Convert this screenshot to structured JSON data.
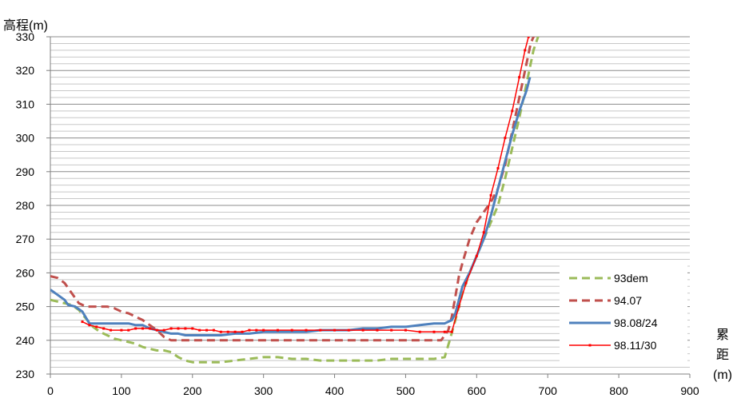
{
  "chart_data": {
    "type": "line",
    "title": "",
    "ylabel": "高程(m)",
    "xlabel_lines": [
      "累",
      "距",
      "(m)"
    ],
    "xlim": [
      0,
      900
    ],
    "ylim": [
      230,
      330
    ],
    "x_ticks": [
      0,
      100,
      200,
      300,
      400,
      500,
      600,
      700,
      800,
      900
    ],
    "y_ticks": [
      230,
      240,
      250,
      260,
      270,
      280,
      290,
      300,
      310,
      320,
      330
    ],
    "y_minor_step": 2,
    "grid": true,
    "legend_position": "bottom-right",
    "series": [
      {
        "name": "93dem",
        "color": "#9bbb59",
        "style": "dashed",
        "points": [
          [
            0,
            252
          ],
          [
            10,
            251.5
          ],
          [
            20,
            251
          ],
          [
            30,
            250.5
          ],
          [
            40,
            249
          ],
          [
            50,
            246.5
          ],
          [
            60,
            244
          ],
          [
            70,
            242.5
          ],
          [
            80,
            241.5
          ],
          [
            90,
            240.5
          ],
          [
            100,
            240
          ],
          [
            110,
            239.5
          ],
          [
            120,
            239
          ],
          [
            130,
            238
          ],
          [
            140,
            237.5
          ],
          [
            150,
            237
          ],
          [
            160,
            237
          ],
          [
            170,
            236.5
          ],
          [
            180,
            235
          ],
          [
            190,
            234
          ],
          [
            200,
            233.5
          ],
          [
            220,
            233.5
          ],
          [
            240,
            233.5
          ],
          [
            260,
            234
          ],
          [
            280,
            234.5
          ],
          [
            300,
            235
          ],
          [
            320,
            235
          ],
          [
            340,
            234.5
          ],
          [
            360,
            234.5
          ],
          [
            380,
            234
          ],
          [
            400,
            234
          ],
          [
            420,
            234
          ],
          [
            440,
            234
          ],
          [
            460,
            234
          ],
          [
            480,
            234.5
          ],
          [
            500,
            234.5
          ],
          [
            520,
            234.5
          ],
          [
            540,
            234.5
          ],
          [
            555,
            235
          ],
          [
            562,
            240
          ],
          [
            570,
            246
          ],
          [
            580,
            254
          ],
          [
            590,
            260
          ],
          [
            600,
            265
          ],
          [
            610,
            270
          ],
          [
            620,
            275
          ],
          [
            630,
            280
          ],
          [
            640,
            288
          ],
          [
            650,
            297
          ],
          [
            660,
            306
          ],
          [
            670,
            316
          ],
          [
            680,
            326
          ],
          [
            688,
            331
          ]
        ]
      },
      {
        "name": "94.07",
        "color": "#c0504d",
        "style": "dashed",
        "points": [
          [
            0,
            259
          ],
          [
            10,
            258.5
          ],
          [
            20,
            257
          ],
          [
            30,
            254
          ],
          [
            40,
            251
          ],
          [
            50,
            250
          ],
          [
            60,
            250
          ],
          [
            70,
            250
          ],
          [
            80,
            250
          ],
          [
            90,
            249.5
          ],
          [
            100,
            248.5
          ],
          [
            110,
            248
          ],
          [
            120,
            247
          ],
          [
            130,
            246
          ],
          [
            140,
            244.5
          ],
          [
            150,
            243
          ],
          [
            160,
            241
          ],
          [
            170,
            240
          ],
          [
            200,
            240
          ],
          [
            250,
            240
          ],
          [
            300,
            240
          ],
          [
            350,
            240
          ],
          [
            400,
            240
          ],
          [
            450,
            240
          ],
          [
            500,
            240
          ],
          [
            550,
            240
          ],
          [
            560,
            243
          ],
          [
            565,
            247
          ],
          [
            570,
            253
          ],
          [
            575,
            259
          ],
          [
            580,
            263
          ],
          [
            590,
            270
          ],
          [
            600,
            275
          ],
          [
            610,
            278
          ],
          [
            620,
            281
          ],
          [
            630,
            285
          ],
          [
            640,
            292
          ],
          [
            650,
            302
          ],
          [
            660,
            312
          ],
          [
            670,
            322
          ],
          [
            676,
            328
          ],
          [
            680,
            330
          ],
          [
            686,
            331
          ]
        ]
      },
      {
        "name": "98.08/24",
        "color": "#4f81bd",
        "style": "solid",
        "points": [
          [
            0,
            255
          ],
          [
            10,
            253.5
          ],
          [
            20,
            252
          ],
          [
            25,
            250.5
          ],
          [
            35,
            250
          ],
          [
            45,
            248.5
          ],
          [
            55,
            245
          ],
          [
            60,
            245
          ],
          [
            70,
            245
          ],
          [
            80,
            245
          ],
          [
            90,
            245
          ],
          [
            100,
            245
          ],
          [
            110,
            245
          ],
          [
            120,
            244.5
          ],
          [
            130,
            244.5
          ],
          [
            140,
            243.5
          ],
          [
            150,
            243
          ],
          [
            160,
            242.5
          ],
          [
            170,
            242
          ],
          [
            180,
            242
          ],
          [
            190,
            241.5
          ],
          [
            200,
            241.5
          ],
          [
            220,
            241.5
          ],
          [
            240,
            241.5
          ],
          [
            260,
            242
          ],
          [
            280,
            242
          ],
          [
            300,
            242.5
          ],
          [
            320,
            242.5
          ],
          [
            340,
            242.5
          ],
          [
            360,
            242.5
          ],
          [
            380,
            243
          ],
          [
            400,
            243
          ],
          [
            420,
            243
          ],
          [
            440,
            243.5
          ],
          [
            460,
            243.5
          ],
          [
            480,
            244
          ],
          [
            500,
            244
          ],
          [
            520,
            244.5
          ],
          [
            540,
            245
          ],
          [
            555,
            245
          ],
          [
            565,
            246
          ],
          [
            570,
            248
          ],
          [
            575,
            252
          ],
          [
            580,
            256
          ],
          [
            590,
            260
          ],
          [
            600,
            265
          ],
          [
            610,
            270
          ],
          [
            620,
            277
          ],
          [
            630,
            285
          ],
          [
            640,
            293
          ],
          [
            650,
            301
          ],
          [
            660,
            308
          ],
          [
            670,
            314
          ],
          [
            675,
            318
          ]
        ]
      },
      {
        "name": "98.11/30",
        "color": "#ff0000",
        "style": "solid-markers",
        "points": [
          [
            45,
            245.5
          ],
          [
            55,
            244.5
          ],
          [
            65,
            244
          ],
          [
            75,
            243.5
          ],
          [
            85,
            243
          ],
          [
            100,
            243
          ],
          [
            110,
            243
          ],
          [
            120,
            243.5
          ],
          [
            130,
            243.5
          ],
          [
            140,
            243.5
          ],
          [
            150,
            243
          ],
          [
            160,
            243
          ],
          [
            170,
            243.5
          ],
          [
            180,
            243.5
          ],
          [
            190,
            243.5
          ],
          [
            200,
            243.5
          ],
          [
            210,
            243
          ],
          [
            220,
            243
          ],
          [
            230,
            243
          ],
          [
            240,
            242.5
          ],
          [
            250,
            242.5
          ],
          [
            260,
            242.5
          ],
          [
            270,
            242.5
          ],
          [
            280,
            243
          ],
          [
            290,
            243
          ],
          [
            300,
            243
          ],
          [
            320,
            243
          ],
          [
            340,
            243
          ],
          [
            360,
            243
          ],
          [
            380,
            243
          ],
          [
            400,
            243
          ],
          [
            420,
            243
          ],
          [
            440,
            243
          ],
          [
            460,
            243
          ],
          [
            480,
            243
          ],
          [
            500,
            243
          ],
          [
            520,
            242.5
          ],
          [
            540,
            242.5
          ],
          [
            555,
            242.5
          ],
          [
            565,
            242.5
          ],
          [
            575,
            250
          ],
          [
            585,
            257
          ],
          [
            600,
            265
          ],
          [
            610,
            272
          ],
          [
            620,
            283
          ],
          [
            630,
            291
          ],
          [
            640,
            300
          ],
          [
            650,
            308
          ],
          [
            660,
            318
          ],
          [
            668,
            326
          ],
          [
            673,
            330
          ]
        ]
      }
    ]
  }
}
